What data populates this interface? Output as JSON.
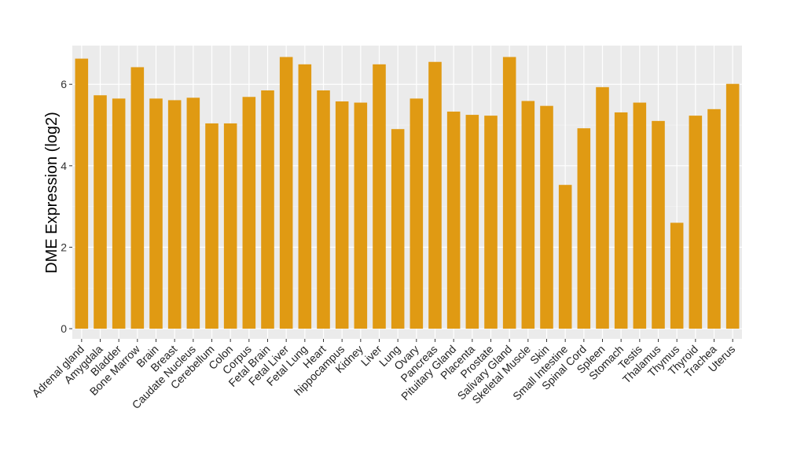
{
  "chart_data": {
    "type": "bar",
    "title": "",
    "xlabel": "",
    "ylabel": "DME Expression (log2)",
    "ylim": [
      -0.25,
      6.95
    ],
    "yticks": [
      0,
      2,
      4,
      6
    ],
    "grid": true,
    "bar_color": "#E09A13",
    "panel_color": "#EBEBEB",
    "categories": [
      "Adrenal gland",
      "Amygdala",
      "Bladder",
      "Bone Marrow",
      "Brain",
      "Breast",
      "Caudate Nucleus",
      "Cerebellum",
      "Colon",
      "Corpus",
      "Fetal Brain",
      "Fetal Liver",
      "Fetal Lung",
      "Heart",
      "hippocampus",
      "Kidney",
      "Liver",
      "Lung",
      "Ovary",
      "Pancreas",
      "Pituitary Gland",
      "Placenta",
      "Prostate",
      "Salivary Gland",
      "Skeletal Muscle",
      "Skin",
      "Small Intestine",
      "Spinal Cord",
      "Spleen",
      "Stomach",
      "Testis",
      "Thalamus",
      "Thymus",
      "Thyroid",
      "Trachea",
      "Uterus"
    ],
    "values": [
      6.63,
      5.73,
      5.65,
      6.42,
      5.65,
      5.61,
      5.67,
      5.04,
      5.04,
      5.69,
      5.85,
      6.67,
      6.49,
      5.85,
      5.58,
      5.55,
      6.49,
      4.9,
      5.65,
      6.55,
      5.33,
      5.25,
      5.23,
      6.67,
      5.59,
      5.47,
      3.53,
      4.92,
      5.93,
      5.31,
      5.55,
      5.1,
      2.6,
      5.23,
      5.39,
      6.01
    ]
  }
}
